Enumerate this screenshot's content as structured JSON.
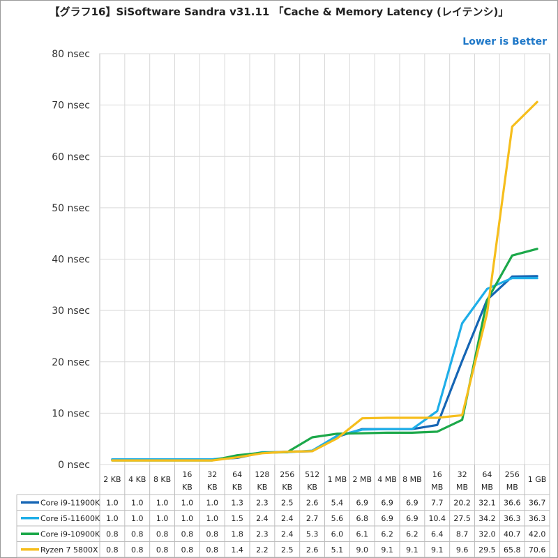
{
  "chart_data": {
    "type": "line",
    "title": "【グラフ16】SiSoftware Sandra v31.11 「Cache & Memory Latency (レイテンシ)」",
    "annotation": "Lower is Better",
    "ylim": [
      0,
      80
    ],
    "y_ticks": [
      {
        "value": 0,
        "label": "0 nsec"
      },
      {
        "value": 10,
        "label": "10 nsec"
      },
      {
        "value": 20,
        "label": "20 nsec"
      },
      {
        "value": 30,
        "label": "30 nsec"
      },
      {
        "value": 40,
        "label": "40 nsec"
      },
      {
        "value": 50,
        "label": "50 nsec"
      },
      {
        "value": 60,
        "label": "60 nsec"
      },
      {
        "value": 70,
        "label": "70 nsec"
      },
      {
        "value": 80,
        "label": "80 nsec"
      }
    ],
    "categories": [
      "2 KB",
      "4 KB",
      "8 KB",
      "16 KB",
      "32 KB",
      "64 KB",
      "128 KB",
      "256 KB",
      "512 KB",
      "1 MB",
      "2 MB",
      "4 MB",
      "8 MB",
      "16 MB",
      "32 MB",
      "64 MB",
      "256 MB",
      "1 GB"
    ],
    "series": [
      {
        "name": "Core i9-11900K",
        "color": "#1565b4",
        "values": [
          1.0,
          1.0,
          1.0,
          1.0,
          1.0,
          1.3,
          2.3,
          2.5,
          2.6,
          5.4,
          6.9,
          6.9,
          6.9,
          7.7,
          20.2,
          32.1,
          36.6,
          36.7
        ],
        "labels": [
          "1.0",
          "1.0",
          "1.0",
          "1.0",
          "1.0",
          "1.3",
          "2.3",
          "2.5",
          "2.6",
          "5.4",
          "6.9",
          "6.9",
          "6.9",
          "7.7",
          "20.2",
          "32.1",
          "36.6",
          "36.7"
        ]
      },
      {
        "name": "Core i5-11600K",
        "color": "#1eaee8",
        "values": [
          1.0,
          1.0,
          1.0,
          1.0,
          1.0,
          1.5,
          2.4,
          2.4,
          2.7,
          5.6,
          6.8,
          6.9,
          6.9,
          10.4,
          27.5,
          34.2,
          36.3,
          36.3
        ],
        "labels": [
          "1.0",
          "1.0",
          "1.0",
          "1.0",
          "1.0",
          "1.5",
          "2.4",
          "2.4",
          "2.7",
          "5.6",
          "6.8",
          "6.9",
          "6.9",
          "10.4",
          "27.5",
          "34.2",
          "36.3",
          "36.3"
        ]
      },
      {
        "name": "Core i9-10900K",
        "color": "#1ca84a",
        "values": [
          0.8,
          0.8,
          0.8,
          0.8,
          0.8,
          1.8,
          2.3,
          2.4,
          5.3,
          6.0,
          6.1,
          6.2,
          6.2,
          6.4,
          8.7,
          32.0,
          40.7,
          42.0
        ],
        "labels": [
          "0.8",
          "0.8",
          "0.8",
          "0.8",
          "0.8",
          "1.8",
          "2.3",
          "2.4",
          "5.3",
          "6.0",
          "6.1",
          "6.2",
          "6.2",
          "6.4",
          "8.7",
          "32.0",
          "40.7",
          "42.0"
        ]
      },
      {
        "name": "Ryzen 7 5800X",
        "color": "#f6be1c",
        "values": [
          0.8,
          0.8,
          0.8,
          0.8,
          0.8,
          1.4,
          2.2,
          2.5,
          2.6,
          5.1,
          9.0,
          9.1,
          9.1,
          9.1,
          9.6,
          29.5,
          65.8,
          70.6
        ],
        "labels": [
          "0.8",
          "0.8",
          "0.8",
          "0.8",
          "0.8",
          "1.4",
          "2.2",
          "2.5",
          "2.6",
          "5.1",
          "9.0",
          "9.1",
          "9.1",
          "9.1",
          "9.6",
          "29.5",
          "65.8",
          "70.6"
        ]
      }
    ]
  }
}
